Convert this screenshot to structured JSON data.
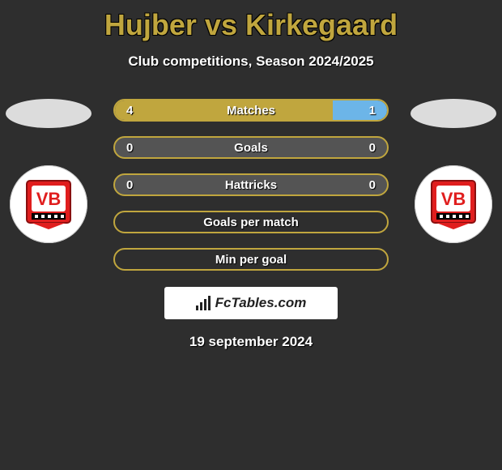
{
  "title": "Hujber vs Kirkegaard",
  "subtitle": "Club competitions, Season 2024/2025",
  "colors": {
    "accent": "#c0a63e",
    "right_fill": "#6cb5e8",
    "bar_bg": "#545454",
    "page_bg": "#2e2e2e"
  },
  "club_badge": {
    "bg": "#e01e1e",
    "letters_bg": "#ffffff",
    "stripe": "#000000",
    "text": "VB"
  },
  "stats": [
    {
      "label": "Matches",
      "left_val": "4",
      "right_val": "1",
      "left_pct": 80,
      "right_pct": 20,
      "show_fill": true
    },
    {
      "label": "Goals",
      "left_val": "0",
      "right_val": "0",
      "left_pct": 0,
      "right_pct": 0,
      "show_fill": true
    },
    {
      "label": "Hattricks",
      "left_val": "0",
      "right_val": "0",
      "left_pct": 0,
      "right_pct": 0,
      "show_fill": true
    },
    {
      "label": "Goals per match",
      "left_val": "",
      "right_val": "",
      "left_pct": 0,
      "right_pct": 0,
      "show_fill": false
    },
    {
      "label": "Min per goal",
      "left_val": "",
      "right_val": "",
      "left_pct": 0,
      "right_pct": 0,
      "show_fill": false
    }
  ],
  "footer": {
    "brand": "FcTables.com",
    "date": "19 september 2024"
  }
}
